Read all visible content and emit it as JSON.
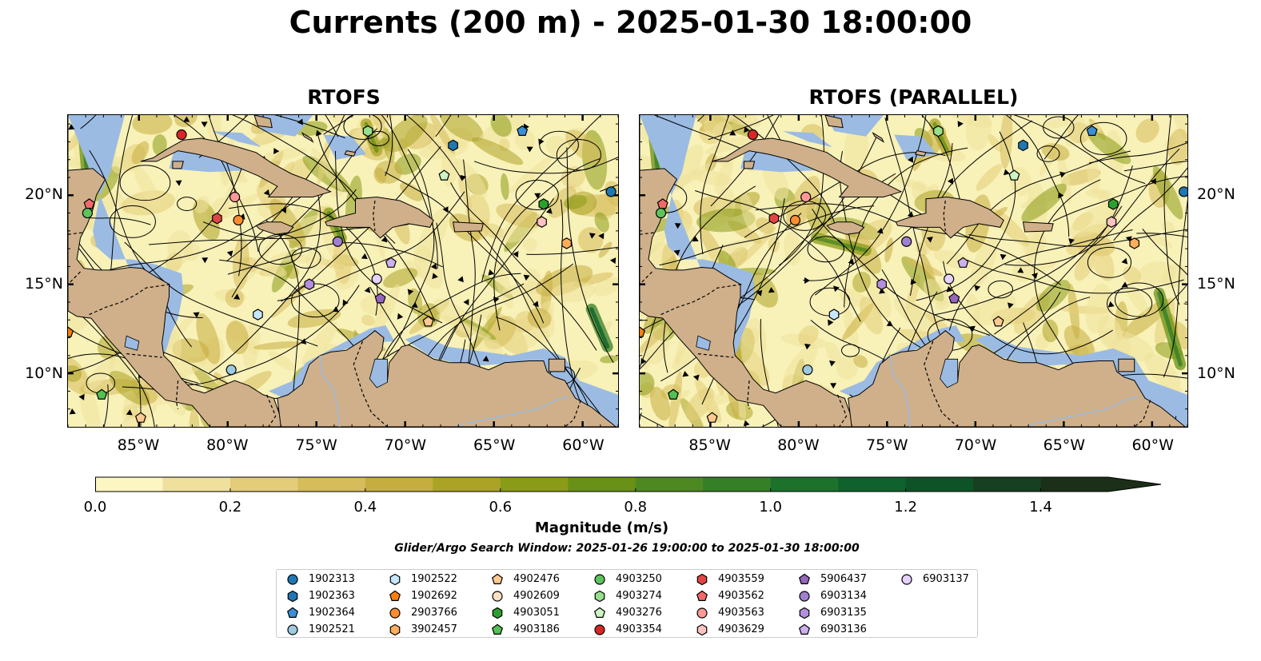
{
  "title": "Currents (200 m) - 2025-01-30 18:00:00",
  "panels": [
    {
      "title": "RTOFS"
    },
    {
      "title": "RTOFS (PARALLEL)"
    }
  ],
  "map": {
    "lon_range": [
      -89,
      -58
    ],
    "lat_range": [
      7,
      24.5
    ],
    "lon_ticks": [
      "85°W",
      "80°W",
      "75°W",
      "70°W",
      "65°W",
      "60°W"
    ],
    "lat_ticks": [
      "20°N",
      "15°N",
      "10°N"
    ],
    "colors": {
      "land": "#cfb08a",
      "shelf": "#9bbbe3",
      "water_low": "#f8f1b8"
    }
  },
  "colorbar": {
    "label": "Magnitude (m/s)",
    "ticks": [
      "0.0",
      "0.2",
      "0.4",
      "0.6",
      "0.8",
      "1.0",
      "1.2",
      "1.4"
    ],
    "range": [
      0,
      1.5
    ],
    "colors": [
      "#fcf6c2",
      "#efe19c",
      "#e3cd79",
      "#d6bc5b",
      "#c6ad3f",
      "#aba326",
      "#8a9b17",
      "#6a9117",
      "#4e8821",
      "#357f26",
      "#1d722b",
      "#0f622d",
      "#0e5228",
      "#173f21",
      "#1c2f18"
    ]
  },
  "search_window": "Glider/Argo Search Window: 2025-01-26 19:00:00 to 2025-01-30 18:00:00",
  "legend": [
    {
      "id": "1902313",
      "shape": "circle",
      "color": "#1f77b4"
    },
    {
      "id": "1902363",
      "shape": "hexagon",
      "color": "#1f77b4"
    },
    {
      "id": "1902364",
      "shape": "pentagon",
      "color": "#3b8fd6"
    },
    {
      "id": "1902521",
      "shape": "circle",
      "color": "#9ecae1"
    },
    {
      "id": "1902522",
      "shape": "hexagon",
      "color": "#c6e8ff"
    },
    {
      "id": "1902692",
      "shape": "pentagon",
      "color": "#ff7f0e"
    },
    {
      "id": "2903766",
      "shape": "circle",
      "color": "#ff8c2e"
    },
    {
      "id": "3902457",
      "shape": "hexagon",
      "color": "#ffae5c"
    },
    {
      "id": "4902476",
      "shape": "pentagon",
      "color": "#ffc98f"
    },
    {
      "id": "4902609",
      "shape": "circle",
      "color": "#ffe0c2"
    },
    {
      "id": "4903051",
      "shape": "hexagon",
      "color": "#2ca02c"
    },
    {
      "id": "4903186",
      "shape": "pentagon",
      "color": "#52c052"
    },
    {
      "id": "4903250",
      "shape": "circle",
      "color": "#5dc35d"
    },
    {
      "id": "4903274",
      "shape": "hexagon",
      "color": "#98df8a"
    },
    {
      "id": "4903276",
      "shape": "pentagon",
      "color": "#cdf5c4"
    },
    {
      "id": "4903354",
      "shape": "circle",
      "color": "#d62728"
    },
    {
      "id": "4903559",
      "shape": "hexagon",
      "color": "#e04545"
    },
    {
      "id": "4903562",
      "shape": "pentagon",
      "color": "#f06a6a"
    },
    {
      "id": "4903563",
      "shape": "circle",
      "color": "#ff9896"
    },
    {
      "id": "4903629",
      "shape": "hexagon",
      "color": "#ffc2c0"
    },
    {
      "id": "5906437",
      "shape": "pentagon",
      "color": "#9467bd"
    },
    {
      "id": "6903134",
      "shape": "circle",
      "color": "#a07fd0"
    },
    {
      "id": "6903135",
      "shape": "hexagon",
      "color": "#b38fe0"
    },
    {
      "id": "6903136",
      "shape": "pentagon",
      "color": "#cdb0ee"
    },
    {
      "id": "6903137",
      "shape": "circle",
      "color": "#e6d3ff"
    }
  ],
  "markers_left": [
    {
      "id": "1902313",
      "lon": -58.4,
      "lat": 20.2
    },
    {
      "id": "1902364",
      "lon": -63.4,
      "lat": 23.6
    },
    {
      "id": "1902363",
      "lon": -67.3,
      "lat": 22.8
    },
    {
      "id": "4903274",
      "lon": -72.1,
      "lat": 23.6
    },
    {
      "id": "4903276",
      "lon": -67.8,
      "lat": 21.1
    },
    {
      "id": "4903354",
      "lon": -82.6,
      "lat": 23.4
    },
    {
      "id": "4903562",
      "lon": -87.8,
      "lat": 19.5
    },
    {
      "id": "4903250",
      "lon": -87.9,
      "lat": 19.0
    },
    {
      "id": "4903563",
      "lon": -79.6,
      "lat": 19.9
    },
    {
      "id": "4903559",
      "lon": -80.6,
      "lat": 18.7
    },
    {
      "id": "2903766",
      "lon": -79.4,
      "lat": 18.6
    },
    {
      "id": "4903051",
      "lon": -62.2,
      "lat": 19.5
    },
    {
      "id": "4903629",
      "lon": -62.3,
      "lat": 18.5
    },
    {
      "id": "3902457",
      "lon": -60.9,
      "lat": 17.3
    },
    {
      "id": "6903134",
      "lon": -73.8,
      "lat": 17.4
    },
    {
      "id": "6903136",
      "lon": -70.8,
      "lat": 16.2
    },
    {
      "id": "6903135",
      "lon": -75.4,
      "lat": 15.0
    },
    {
      "id": "6903137",
      "lon": -71.6,
      "lat": 15.3
    },
    {
      "id": "5906437",
      "lon": -71.4,
      "lat": 14.2
    },
    {
      "id": "4902476",
      "lon": -68.7,
      "lat": 12.9
    },
    {
      "id": "1902522",
      "lon": -78.3,
      "lat": 13.3
    },
    {
      "id": "1902521",
      "lon": -79.8,
      "lat": 10.2
    },
    {
      "id": "1902692",
      "lon": -89.0,
      "lat": 12.3
    },
    {
      "id": "4903186",
      "lon": -87.1,
      "lat": 8.8
    },
    {
      "id": "4902476",
      "lon": -84.9,
      "lat": 7.5
    }
  ],
  "markers_right": [
    {
      "id": "1902313",
      "lon": -58.2,
      "lat": 20.2
    },
    {
      "id": "1902364",
      "lon": -63.4,
      "lat": 23.6
    },
    {
      "id": "1902363",
      "lon": -67.3,
      "lat": 22.8
    },
    {
      "id": "4903274",
      "lon": -72.1,
      "lat": 23.6
    },
    {
      "id": "4903276",
      "lon": -67.8,
      "lat": 21.1
    },
    {
      "id": "4903354",
      "lon": -82.6,
      "lat": 23.4
    },
    {
      "id": "4903562",
      "lon": -87.7,
      "lat": 19.5
    },
    {
      "id": "4903250",
      "lon": -87.8,
      "lat": 19.0
    },
    {
      "id": "4903563",
      "lon": -79.6,
      "lat": 19.9
    },
    {
      "id": "4903559",
      "lon": -81.4,
      "lat": 18.7
    },
    {
      "id": "2903766",
      "lon": -80.2,
      "lat": 18.6
    },
    {
      "id": "4903051",
      "lon": -62.2,
      "lat": 19.5
    },
    {
      "id": "4903629",
      "lon": -62.3,
      "lat": 18.5
    },
    {
      "id": "3902457",
      "lon": -61.0,
      "lat": 17.3
    },
    {
      "id": "6903134",
      "lon": -73.9,
      "lat": 17.4
    },
    {
      "id": "6903136",
      "lon": -70.7,
      "lat": 16.2
    },
    {
      "id": "6903135",
      "lon": -75.3,
      "lat": 15.0
    },
    {
      "id": "6903137",
      "lon": -71.5,
      "lat": 15.3
    },
    {
      "id": "5906437",
      "lon": -71.2,
      "lat": 14.2
    },
    {
      "id": "4902476",
      "lon": -68.7,
      "lat": 12.9
    },
    {
      "id": "1902522",
      "lon": -78.0,
      "lat": 13.3
    },
    {
      "id": "1902521",
      "lon": -79.5,
      "lat": 10.2
    },
    {
      "id": "1902692",
      "lon": -89.0,
      "lat": 12.3
    },
    {
      "id": "4903186",
      "lon": -87.1,
      "lat": 8.8
    },
    {
      "id": "4902476",
      "lon": -84.9,
      "lat": 7.5
    }
  ]
}
